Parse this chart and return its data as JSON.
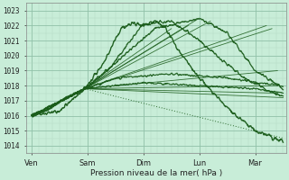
{
  "background_color": "#c8edd8",
  "plot_bg_color": "#c8edd8",
  "grid_minor_color": "#b0d8c0",
  "grid_major_color": "#90c0a8",
  "line_color": "#1a5c1a",
  "ylim": [
    1013.5,
    1023.5
  ],
  "yticks": [
    1014,
    1015,
    1016,
    1017,
    1018,
    1019,
    1020,
    1021,
    1022,
    1023
  ],
  "days": [
    "Ven",
    "Sam",
    "Dim",
    "Lun",
    "Mar"
  ],
  "xlabel": "Pression niveau de la mer( hPa )",
  "day_x": [
    0.0,
    1.0,
    2.0,
    3.0,
    4.0
  ],
  "xlim": [
    -0.1,
    4.55
  ]
}
